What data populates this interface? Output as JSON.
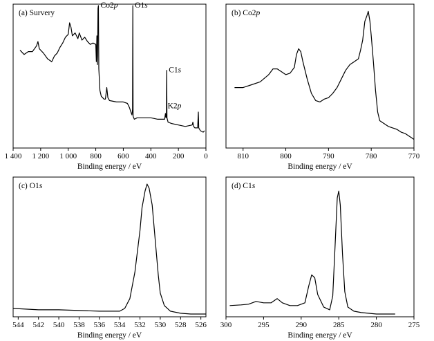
{
  "chart_data": [
    {
      "type": "line",
      "panel_label": "(a) Survery",
      "xlabel": "Binding energy / eV",
      "ylabel": "",
      "xlim": [
        1400,
        0
      ],
      "x_reversed": true,
      "ylim": [
        0,
        1
      ],
      "x_ticks": [
        1400,
        1200,
        1000,
        800,
        600,
        400,
        200,
        0
      ],
      "x_tick_labels": [
        "1 400",
        "1 200",
        "1 000",
        "800",
        "600",
        "400",
        "200",
        "0"
      ],
      "annotations": [
        {
          "text": "Co2p",
          "x": 780,
          "y": 0.99
        },
        {
          "text": "O1s",
          "x": 531,
          "y": 0.99
        },
        {
          "text": "C1s",
          "x": 285,
          "y": 0.54
        },
        {
          "text": "K2p",
          "x": 293,
          "y": 0.29
        }
      ],
      "series": [
        {
          "points": [
            [
              1350,
              0.68
            ],
            [
              1320,
              0.65
            ],
            [
              1290,
              0.67
            ],
            [
              1260,
              0.67
            ],
            [
              1230,
              0.71
            ],
            [
              1220,
              0.74
            ],
            [
              1210,
              0.69
            ],
            [
              1180,
              0.66
            ],
            [
              1150,
              0.62
            ],
            [
              1120,
              0.6
            ],
            [
              1100,
              0.64
            ],
            [
              1080,
              0.66
            ],
            [
              1060,
              0.7
            ],
            [
              1040,
              0.73
            ],
            [
              1020,
              0.77
            ],
            [
              1000,
              0.79
            ],
            [
              990,
              0.87
            ],
            [
              980,
              0.84
            ],
            [
              970,
              0.78
            ],
            [
              950,
              0.8
            ],
            [
              930,
              0.76
            ],
            [
              920,
              0.8
            ],
            [
              900,
              0.75
            ],
            [
              880,
              0.77
            ],
            [
              860,
              0.74
            ],
            [
              840,
              0.72
            ],
            [
              820,
              0.73
            ],
            [
              800,
              0.72
            ],
            [
              796,
              0.6
            ],
            [
              792,
              0.78
            ],
            [
              788,
              0.58
            ],
            [
              784,
              0.97
            ],
            [
              781,
              0.99
            ],
            [
              778,
              0.55
            ],
            [
              770,
              0.4
            ],
            [
              760,
              0.36
            ],
            [
              740,
              0.34
            ],
            [
              730,
              0.34
            ],
            [
              720,
              0.42
            ],
            [
              712,
              0.35
            ],
            [
              700,
              0.33
            ],
            [
              650,
              0.32
            ],
            [
              600,
              0.32
            ],
            [
              570,
              0.31
            ],
            [
              555,
              0.28
            ],
            [
              545,
              0.25
            ],
            [
              537,
              0.23
            ],
            [
              533,
              0.27
            ],
            [
              531,
              0.99
            ],
            [
              529,
              0.22
            ],
            [
              520,
              0.2
            ],
            [
              500,
              0.21
            ],
            [
              450,
              0.21
            ],
            [
              400,
              0.21
            ],
            [
              350,
              0.2
            ],
            [
              300,
              0.2
            ],
            [
              294,
              0.24
            ],
            [
              290,
              0.21
            ],
            [
              287,
              0.23
            ],
            [
              285,
              0.54
            ],
            [
              283,
              0.21
            ],
            [
              275,
              0.18
            ],
            [
              250,
              0.17
            ],
            [
              200,
              0.16
            ],
            [
              150,
              0.15
            ],
            [
              100,
              0.16
            ],
            [
              95,
              0.18
            ],
            [
              90,
              0.15
            ],
            [
              80,
              0.14
            ],
            [
              60,
              0.14
            ],
            [
              55,
              0.25
            ],
            [
              52,
              0.14
            ],
            [
              40,
              0.12
            ],
            [
              20,
              0.11
            ],
            [
              10,
              0.12
            ]
          ]
        }
      ]
    },
    {
      "type": "line",
      "panel_label": "(b) Co2p",
      "xlabel": "Binding energy / eV",
      "ylabel": "",
      "xlim": [
        814,
        770
      ],
      "x_reversed": true,
      "ylim": [
        0,
        1
      ],
      "x_ticks": [
        810,
        800,
        790,
        780,
        770
      ],
      "x_tick_labels": [
        "810",
        "800",
        "790",
        "780",
        "770"
      ],
      "series": [
        {
          "points": [
            [
              812,
              0.42
            ],
            [
              810,
              0.42
            ],
            [
              808,
              0.44
            ],
            [
              806,
              0.46
            ],
            [
              804,
              0.51
            ],
            [
              803,
              0.55
            ],
            [
              802,
              0.55
            ],
            [
              801,
              0.53
            ],
            [
              800,
              0.51
            ],
            [
              799,
              0.52
            ],
            [
              798,
              0.56
            ],
            [
              797.5,
              0.65
            ],
            [
              797,
              0.69
            ],
            [
              796.5,
              0.67
            ],
            [
              796,
              0.6
            ],
            [
              795,
              0.48
            ],
            [
              794,
              0.38
            ],
            [
              793,
              0.33
            ],
            [
              792,
              0.32
            ],
            [
              791,
              0.34
            ],
            [
              790,
              0.35
            ],
            [
              789,
              0.38
            ],
            [
              788,
              0.42
            ],
            [
              787,
              0.48
            ],
            [
              786,
              0.54
            ],
            [
              785,
              0.58
            ],
            [
              784,
              0.6
            ],
            [
              783,
              0.62
            ],
            [
              782.5,
              0.68
            ],
            [
              782,
              0.75
            ],
            [
              781.5,
              0.88
            ],
            [
              781,
              0.92
            ],
            [
              780.7,
              0.95
            ],
            [
              780.3,
              0.88
            ],
            [
              780,
              0.78
            ],
            [
              779.5,
              0.6
            ],
            [
              779,
              0.4
            ],
            [
              778.5,
              0.25
            ],
            [
              778,
              0.19
            ],
            [
              777,
              0.17
            ],
            [
              776,
              0.15
            ],
            [
              775,
              0.14
            ],
            [
              774,
              0.13
            ],
            [
              773,
              0.11
            ],
            [
              772,
              0.1
            ],
            [
              771,
              0.08
            ],
            [
              770,
              0.06
            ]
          ]
        }
      ]
    },
    {
      "type": "line",
      "panel_label": "(c) O1s",
      "xlabel": "Binding energy / eV",
      "ylabel": "",
      "xlim": [
        544.5,
        525.5
      ],
      "x_reversed": true,
      "ylim": [
        0,
        1
      ],
      "x_ticks": [
        544,
        542,
        540,
        538,
        536,
        534,
        532,
        530,
        528,
        526
      ],
      "x_tick_labels": [
        "544",
        "542",
        "540",
        "538",
        "536",
        "534",
        "532",
        "530",
        "528",
        "526"
      ],
      "series": [
        {
          "points": [
            [
              544.5,
              0.06
            ],
            [
              542,
              0.05
            ],
            [
              540,
              0.05
            ],
            [
              538,
              0.045
            ],
            [
              536,
              0.04
            ],
            [
              535,
              0.04
            ],
            [
              534,
              0.04
            ],
            [
              533.5,
              0.06
            ],
            [
              533,
              0.13
            ],
            [
              532.5,
              0.32
            ],
            [
              532,
              0.62
            ],
            [
              531.8,
              0.78
            ],
            [
              531.5,
              0.9
            ],
            [
              531.3,
              0.95
            ],
            [
              531.1,
              0.92
            ],
            [
              530.8,
              0.8
            ],
            [
              530.5,
              0.55
            ],
            [
              530.2,
              0.3
            ],
            [
              530,
              0.17
            ],
            [
              529.6,
              0.08
            ],
            [
              529,
              0.04
            ],
            [
              528,
              0.025
            ],
            [
              527,
              0.02
            ],
            [
              526,
              0.02
            ],
            [
              525.5,
              0.02
            ]
          ]
        }
      ]
    },
    {
      "type": "line",
      "panel_label": "(d) C1s",
      "xlabel": "Binding energy / eV",
      "ylabel": "",
      "xlim": [
        300,
        275
      ],
      "x_reversed": true,
      "ylim": [
        0,
        1
      ],
      "x_ticks": [
        300,
        295,
        290,
        285,
        280,
        275
      ],
      "x_tick_labels": [
        "300",
        "295",
        "290",
        "285",
        "280",
        "275"
      ],
      "series": [
        {
          "points": [
            [
              299.5,
              0.08
            ],
            [
              298,
              0.085
            ],
            [
              297,
              0.09
            ],
            [
              296,
              0.11
            ],
            [
              295,
              0.1
            ],
            [
              294,
              0.1
            ],
            [
              293.2,
              0.13
            ],
            [
              292.5,
              0.1
            ],
            [
              291.5,
              0.08
            ],
            [
              290.5,
              0.08
            ],
            [
              289.5,
              0.1
            ],
            [
              289,
              0.22
            ],
            [
              288.6,
              0.3
            ],
            [
              288.2,
              0.28
            ],
            [
              287.8,
              0.16
            ],
            [
              287,
              0.07
            ],
            [
              286.2,
              0.05
            ],
            [
              285.8,
              0.15
            ],
            [
              285.5,
              0.5
            ],
            [
              285.2,
              0.85
            ],
            [
              285,
              0.9
            ],
            [
              284.8,
              0.8
            ],
            [
              284.5,
              0.45
            ],
            [
              284.2,
              0.18
            ],
            [
              283.8,
              0.07
            ],
            [
              283,
              0.04
            ],
            [
              282,
              0.03
            ],
            [
              280,
              0.02
            ],
            [
              278,
              0.02
            ],
            [
              277.5,
              0.02
            ]
          ]
        }
      ]
    }
  ]
}
